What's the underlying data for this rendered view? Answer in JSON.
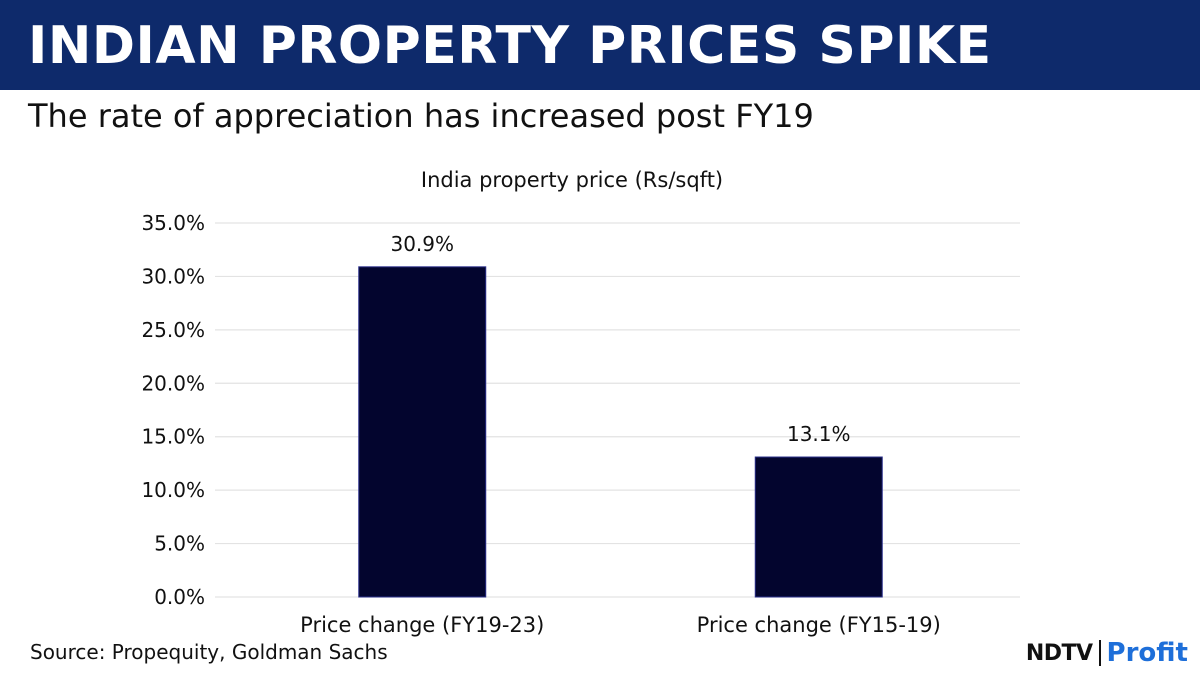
{
  "header": {
    "title": "INDIAN PROPERTY PRICES SPIKE",
    "subtitle": "The rate of appreciation has increased post FY19"
  },
  "chart_data": {
    "type": "bar",
    "title": "India property price (Rs/sqft)",
    "categories": [
      "Price change (FY19-23)",
      "Price change (FY15-19)"
    ],
    "values": [
      30.9,
      13.1
    ],
    "data_labels": [
      "30.9%",
      "13.1%"
    ],
    "y_ticks": [
      "0.0%",
      "5.0%",
      "10.0%",
      "15.0%",
      "20.0%",
      "25.0%",
      "30.0%",
      "35.0%"
    ],
    "ylim": [
      0,
      35
    ],
    "grid": true,
    "legend": "none",
    "bar_color": "#03052e"
  },
  "footer": {
    "source": "Source: Propequity, Goldman Sachs",
    "brand_ndtv": "NDTV",
    "brand_profit": "Profit"
  },
  "colors": {
    "banner": "#0e2a6b",
    "bar": "#03052e",
    "profit": "#1e6fd9"
  }
}
